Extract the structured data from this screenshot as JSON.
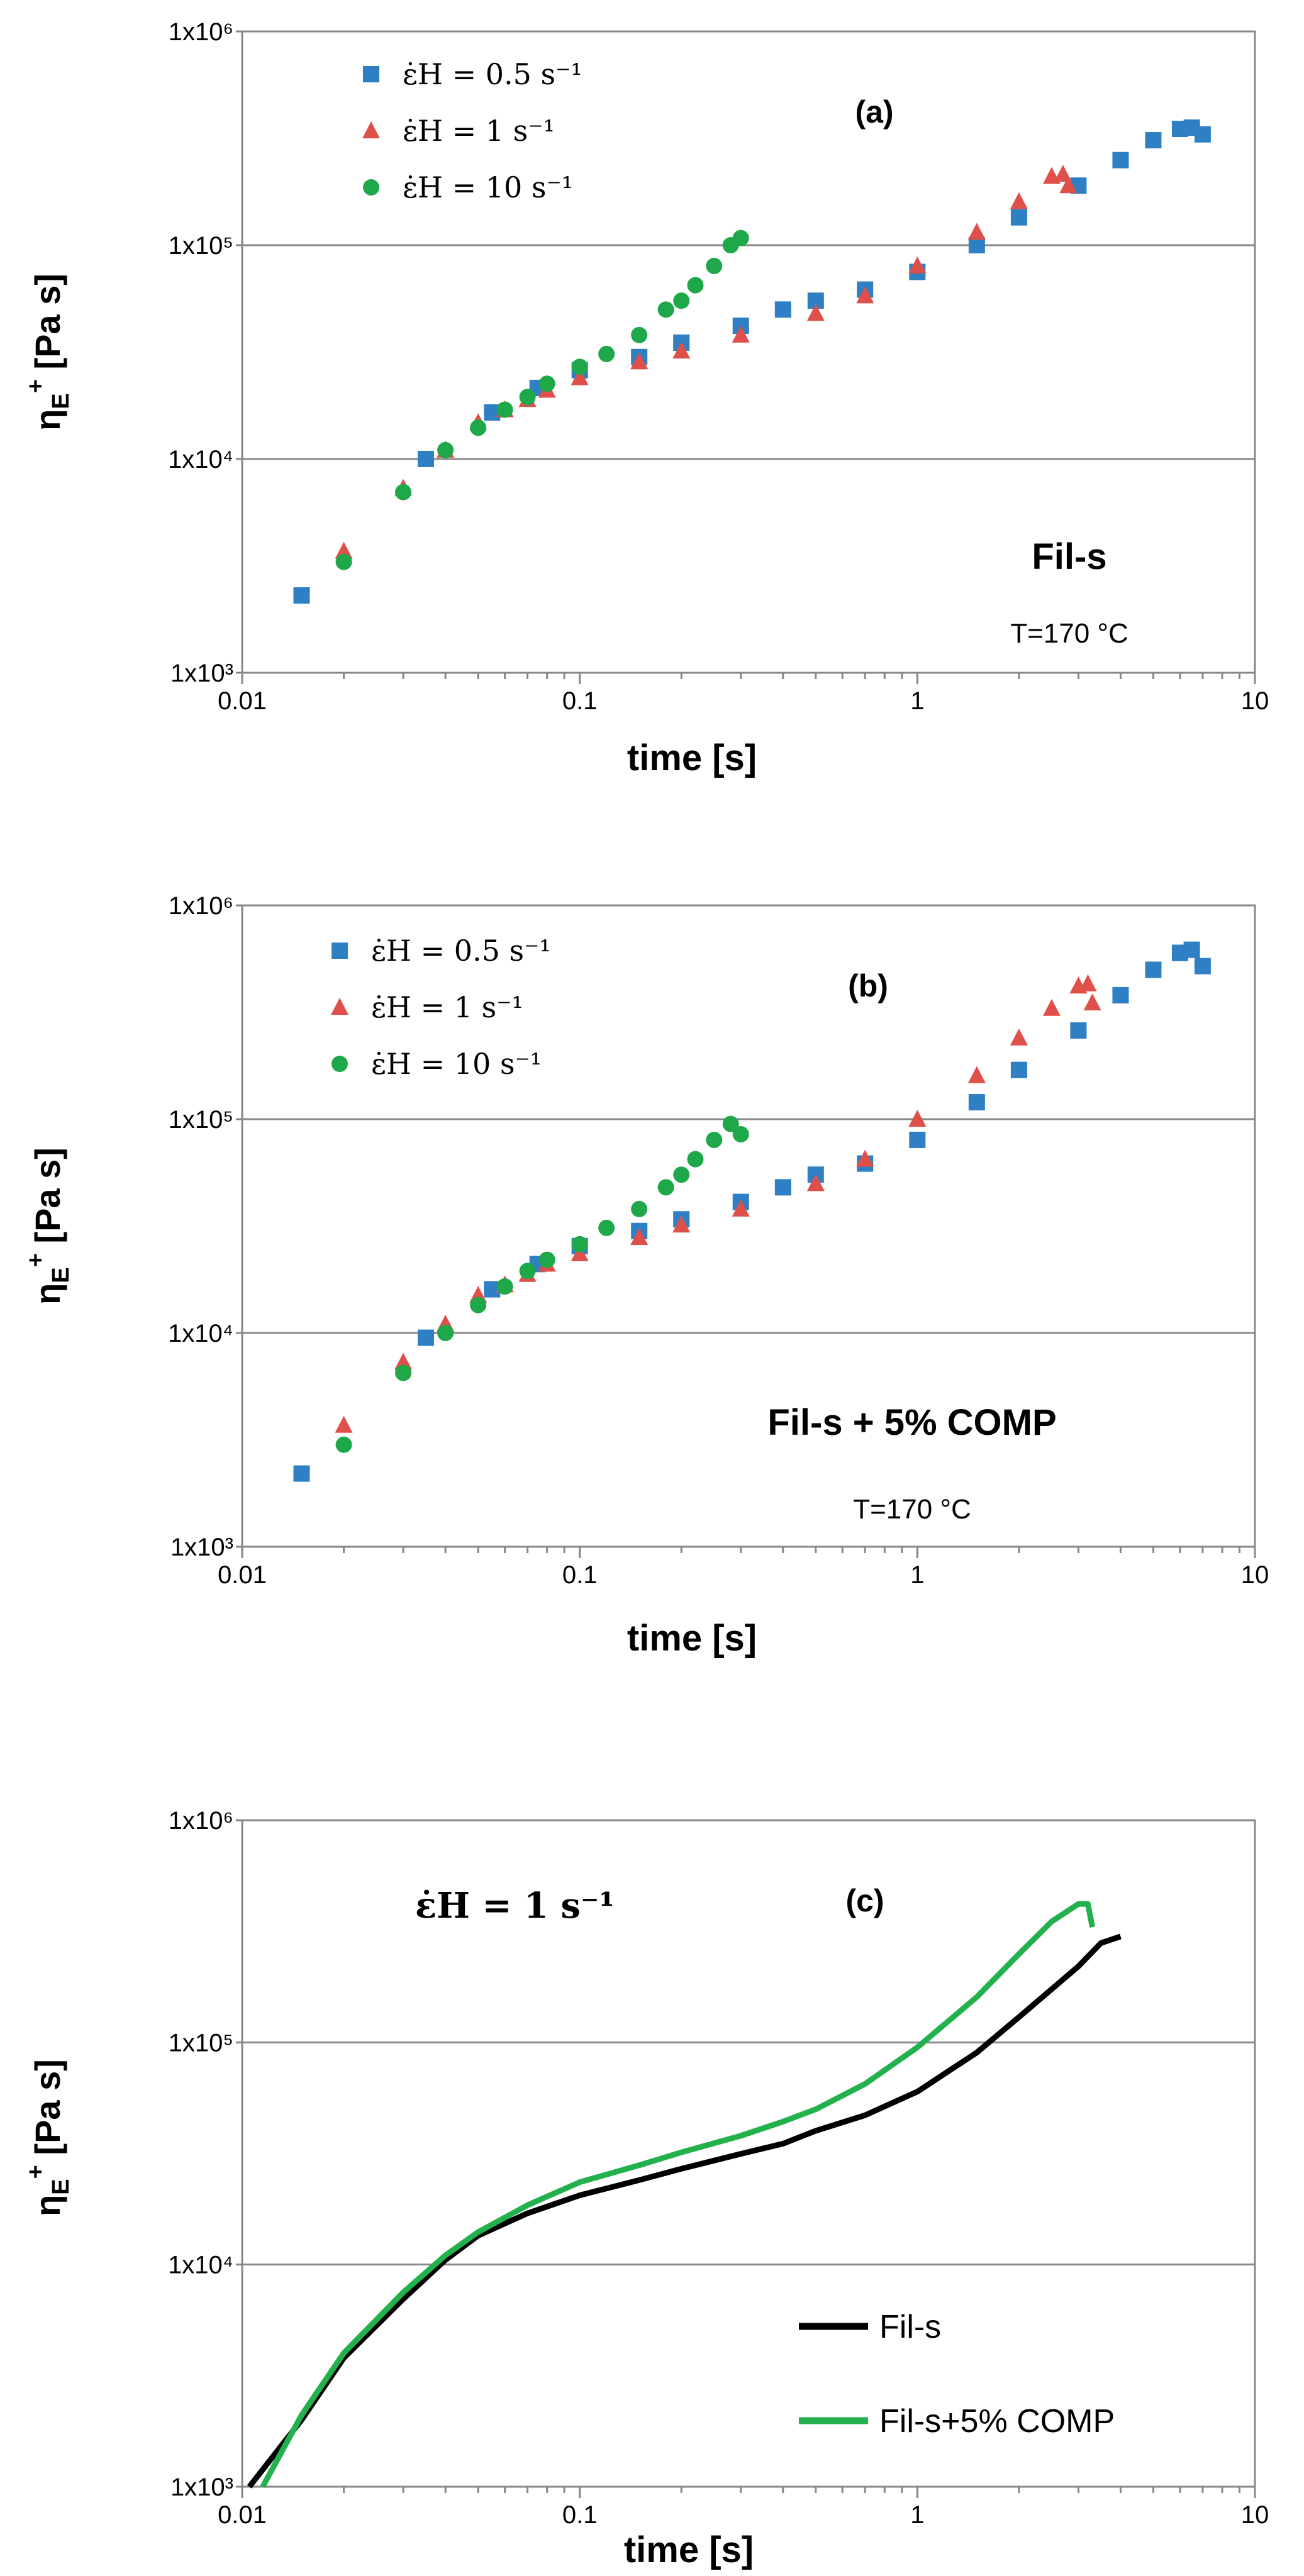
{
  "chart_data": [
    {
      "type": "scatter",
      "panel": "(a)",
      "sample_label": "Fil-s",
      "temperature": "T=170 °C",
      "xlabel": "time [s]",
      "ylabel": "ηE+ [Pa s]",
      "xscale": "log",
      "yscale": "log",
      "xlim": [
        0.01,
        10
      ],
      "ylim": [
        1000,
        1000000
      ],
      "xticks": [
        "0.01",
        "0.1",
        "1",
        "10"
      ],
      "yticks": [
        "1x10³",
        "1x10⁴",
        "1x10⁵",
        "1x10⁶"
      ],
      "legend": [
        "ε̇H = 0.5 s⁻¹",
        "ε̇H = 1 s⁻¹",
        "ε̇H = 10 s⁻¹"
      ],
      "series": [
        {
          "name": "ε̇H = 0.5 s⁻¹",
          "marker": "square",
          "color": "#2e7fc4",
          "points": [
            [
              0.015,
              2300
            ],
            [
              0.035,
              10000
            ],
            [
              0.055,
              16500
            ],
            [
              0.075,
              21500
            ],
            [
              0.1,
              26000
            ],
            [
              0.15,
              30000
            ],
            [
              0.2,
              35000
            ],
            [
              0.3,
              42000
            ],
            [
              0.4,
              50000
            ],
            [
              0.5,
              55000
            ],
            [
              0.7,
              62000
            ],
            [
              1.0,
              75000
            ],
            [
              1.5,
              100000
            ],
            [
              2.0,
              135000
            ],
            [
              3.0,
              190000
            ],
            [
              4.0,
              250000
            ],
            [
              5.0,
              310000
            ],
            [
              6.0,
              350000
            ],
            [
              6.5,
              355000
            ],
            [
              7.0,
              330000
            ]
          ]
        },
        {
          "name": "ε̇H = 1 s⁻¹",
          "marker": "triangle",
          "color": "#e0504a",
          "points": [
            [
              0.02,
              3700
            ],
            [
              0.03,
              7300
            ],
            [
              0.04,
              11000
            ],
            [
              0.05,
              14800
            ],
            [
              0.06,
              17000
            ],
            [
              0.07,
              19000
            ],
            [
              0.08,
              21000
            ],
            [
              0.1,
              24000
            ],
            [
              0.15,
              28500
            ],
            [
              0.2,
              32000
            ],
            [
              0.3,
              38000
            ],
            [
              0.5,
              48000
            ],
            [
              0.7,
              58000
            ],
            [
              1.0,
              80000
            ],
            [
              1.5,
              115000
            ],
            [
              2.0,
              160000
            ],
            [
              2.5,
              210000
            ],
            [
              2.7,
              215000
            ],
            [
              2.8,
              190000
            ]
          ]
        },
        {
          "name": "ε̇H = 10 s⁻¹",
          "marker": "circle",
          "color": "#1ea84a",
          "points": [
            [
              0.02,
              3300
            ],
            [
              0.03,
              7000
            ],
            [
              0.04,
              11000
            ],
            [
              0.05,
              14000
            ],
            [
              0.06,
              17000
            ],
            [
              0.07,
              19500
            ],
            [
              0.08,
              22500
            ],
            [
              0.1,
              27000
            ],
            [
              0.12,
              31000
            ],
            [
              0.15,
              38000
            ],
            [
              0.18,
              50000
            ],
            [
              0.2,
              55000
            ],
            [
              0.22,
              65000
            ],
            [
              0.25,
              80000
            ],
            [
              0.28,
              100000
            ],
            [
              0.3,
              108000
            ]
          ]
        }
      ]
    },
    {
      "type": "scatter",
      "panel": "(b)",
      "sample_label": "Fil-s + 5% COMP",
      "temperature": "T=170 °C",
      "xlabel": "time [s]",
      "ylabel": "ηE+ [Pa s]",
      "xscale": "log",
      "yscale": "log",
      "xlim": [
        0.01,
        10
      ],
      "ylim": [
        1000,
        1000000
      ],
      "xticks": [
        "0.01",
        "0.1",
        "1",
        "10"
      ],
      "yticks": [
        "1x10³",
        "1x10⁴",
        "1x10⁵",
        "1x10⁶"
      ],
      "legend": [
        "ε̇H = 0.5 s⁻¹",
        "ε̇H = 1 s⁻¹",
        "ε̇H = 10 s⁻¹"
      ],
      "series": [
        {
          "name": "ε̇H = 0.5 s⁻¹",
          "marker": "square",
          "color": "#2e7fc4",
          "points": [
            [
              0.015,
              2200
            ],
            [
              0.035,
              9500
            ],
            [
              0.055,
              16000
            ],
            [
              0.075,
              21000
            ],
            [
              0.1,
              25500
            ],
            [
              0.15,
              30000
            ],
            [
              0.2,
              34000
            ],
            [
              0.3,
              41000
            ],
            [
              0.4,
              48000
            ],
            [
              0.5,
              55000
            ],
            [
              0.7,
              62000
            ],
            [
              1.0,
              80000
            ],
            [
              1.5,
              120000
            ],
            [
              2.0,
              170000
            ],
            [
              3.0,
              260000
            ],
            [
              4.0,
              380000
            ],
            [
              5.0,
              500000
            ],
            [
              6.0,
              600000
            ],
            [
              6.5,
              620000
            ],
            [
              7.0,
              520000
            ]
          ]
        },
        {
          "name": "ε̇H = 1 s⁻¹",
          "marker": "triangle",
          "color": "#e0504a",
          "points": [
            [
              0.02,
              3700
            ],
            [
              0.03,
              7300
            ],
            [
              0.04,
              11000
            ],
            [
              0.05,
              15000
            ],
            [
              0.06,
              16800
            ],
            [
              0.07,
              18800
            ],
            [
              0.08,
              21000
            ],
            [
              0.1,
              23500
            ],
            [
              0.15,
              28000
            ],
            [
              0.2,
              32000
            ],
            [
              0.3,
              38000
            ],
            [
              0.5,
              50000
            ],
            [
              0.7,
              65000
            ],
            [
              1.0,
              100000
            ],
            [
              1.5,
              160000
            ],
            [
              2.0,
              240000
            ],
            [
              2.5,
              330000
            ],
            [
              3.0,
              420000
            ],
            [
              3.2,
              430000
            ],
            [
              3.3,
              350000
            ]
          ]
        },
        {
          "name": "ε̇H = 10 s⁻¹",
          "marker": "circle",
          "color": "#1ea84a",
          "points": [
            [
              0.02,
              3000
            ],
            [
              0.03,
              6500
            ],
            [
              0.04,
              10000
            ],
            [
              0.05,
              13500
            ],
            [
              0.06,
              16500
            ],
            [
              0.07,
              19500
            ],
            [
              0.08,
              22000
            ],
            [
              0.1,
              26000
            ],
            [
              0.12,
              31000
            ],
            [
              0.15,
              38000
            ],
            [
              0.18,
              48000
            ],
            [
              0.2,
              55000
            ],
            [
              0.22,
              65000
            ],
            [
              0.25,
              80000
            ],
            [
              0.28,
              95000
            ],
            [
              0.3,
              85000
            ]
          ]
        }
      ]
    },
    {
      "type": "line",
      "panel": "(c)",
      "rate_label": "ε̇H = 1 s⁻¹",
      "xlabel": "time [s]",
      "ylabel": "ηE+ [Pa s]",
      "xscale": "log",
      "yscale": "log",
      "xlim": [
        0.01,
        10
      ],
      "ylim": [
        1000,
        1000000
      ],
      "xticks": [
        "0.01",
        "0.1",
        "1",
        "10"
      ],
      "yticks": [
        "1x10³",
        "1x10⁴",
        "1x10⁵",
        "1x10⁶"
      ],
      "legend": [
        "Fil-s",
        "Fil-s+5% COMP"
      ],
      "series": [
        {
          "name": "Fil-s",
          "color": "#000000",
          "points": [
            [
              0.0105,
              1000
            ],
            [
              0.015,
              2000
            ],
            [
              0.02,
              3800
            ],
            [
              0.03,
              7000
            ],
            [
              0.04,
              10500
            ],
            [
              0.05,
              13500
            ],
            [
              0.07,
              17000
            ],
            [
              0.1,
              20500
            ],
            [
              0.15,
              24000
            ],
            [
              0.2,
              27000
            ],
            [
              0.3,
              31500
            ],
            [
              0.4,
              35000
            ],
            [
              0.5,
              40000
            ],
            [
              0.7,
              47000
            ],
            [
              1.0,
              60000
            ],
            [
              1.5,
              90000
            ],
            [
              2.0,
              130000
            ],
            [
              3.0,
              220000
            ],
            [
              3.5,
              280000
            ],
            [
              4.0,
              300000
            ]
          ]
        },
        {
          "name": "Fil-s+5% COMP",
          "color": "#22b14c",
          "points": [
            [
              0.0115,
              1000
            ],
            [
              0.015,
              2100
            ],
            [
              0.02,
              4000
            ],
            [
              0.03,
              7500
            ],
            [
              0.04,
              11000
            ],
            [
              0.05,
              14000
            ],
            [
              0.07,
              18500
            ],
            [
              0.1,
              23500
            ],
            [
              0.15,
              28000
            ],
            [
              0.2,
              32000
            ],
            [
              0.3,
              38000
            ],
            [
              0.4,
              44000
            ],
            [
              0.5,
              50000
            ],
            [
              0.7,
              65000
            ],
            [
              1.0,
              95000
            ],
            [
              1.5,
              160000
            ],
            [
              2.0,
              250000
            ],
            [
              2.5,
              350000
            ],
            [
              3.0,
              420000
            ],
            [
              3.2,
              420000
            ],
            [
              3.3,
              330000
            ]
          ]
        }
      ]
    }
  ]
}
